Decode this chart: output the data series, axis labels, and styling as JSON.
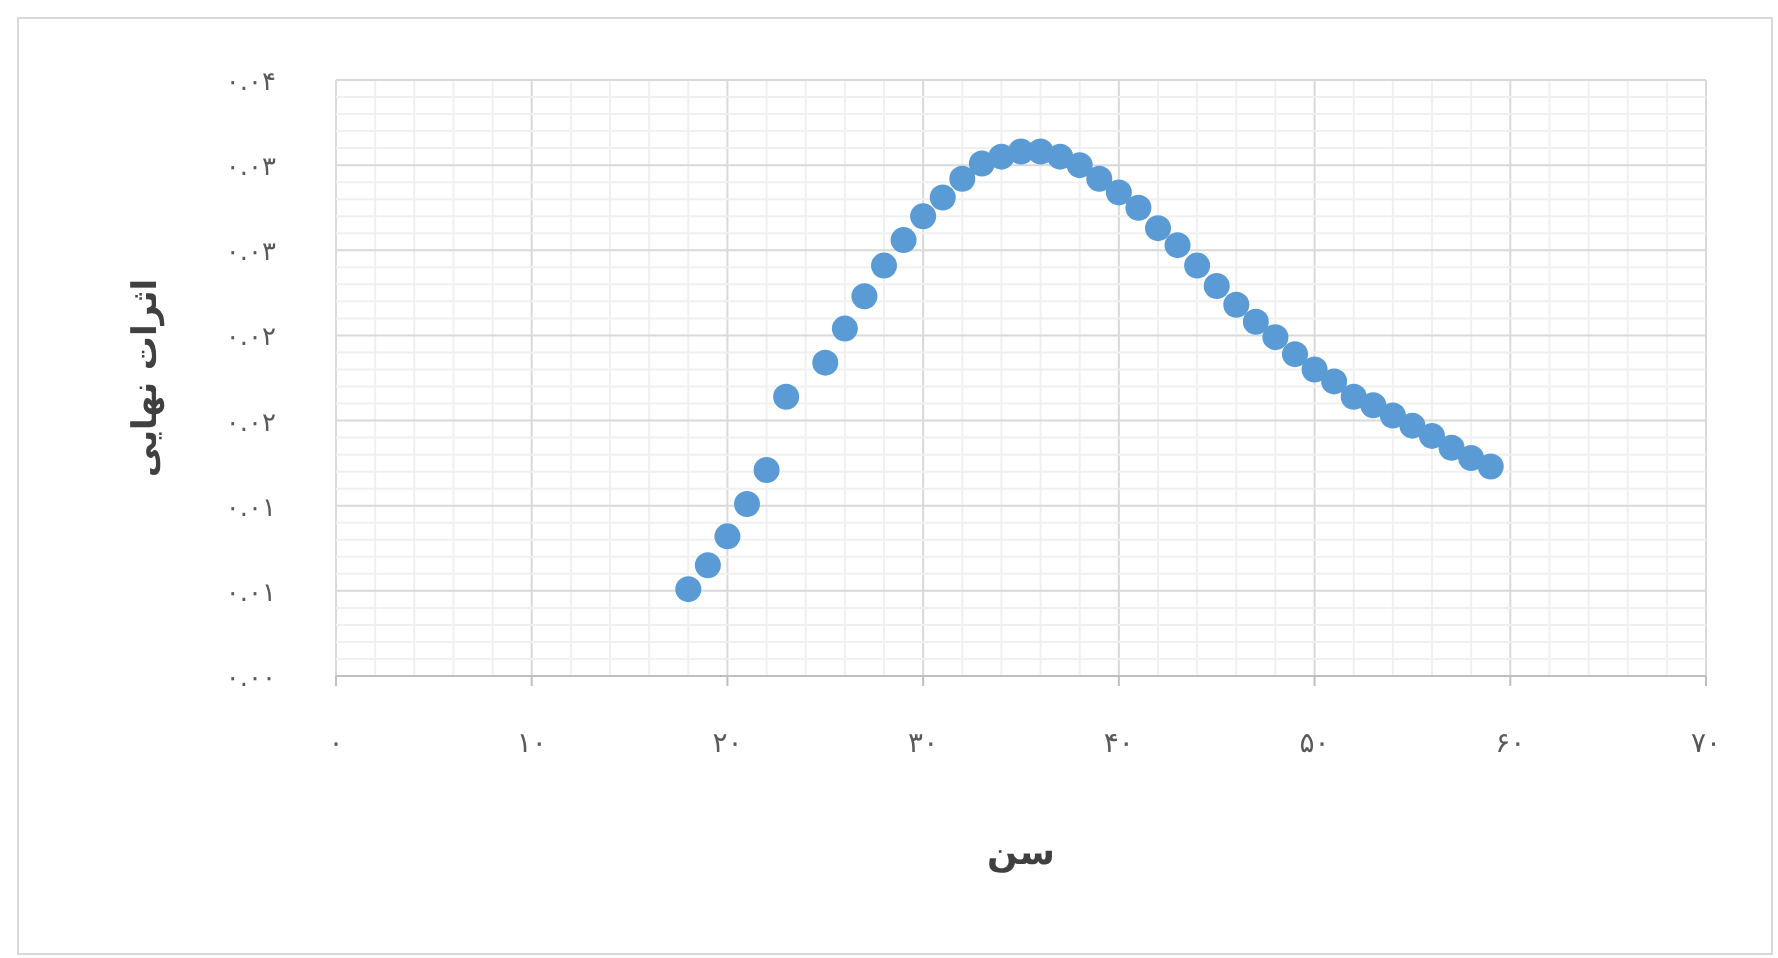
{
  "chart_data": {
    "type": "scatter",
    "xlabel": "سن",
    "ylabel": "اثرات نهایی",
    "x": [
      18,
      19,
      20,
      21,
      22,
      23,
      25,
      26,
      27,
      28,
      29,
      30,
      31,
      32,
      33,
      34,
      35,
      36,
      37,
      38,
      39,
      40,
      41,
      42,
      43,
      44,
      45,
      46,
      47,
      48,
      49,
      50,
      51,
      52,
      53,
      54,
      55,
      56,
      57,
      58,
      59
    ],
    "series": [
      {
        "color": "#5b9bd5",
        "values": [
          0.0051,
          0.0065,
          0.0082,
          0.0101,
          0.0121,
          0.0164,
          0.0184,
          0.0204,
          0.0223,
          0.0241,
          0.0256,
          0.027,
          0.0281,
          0.0292,
          0.0301,
          0.0305,
          0.0308,
          0.0308,
          0.0305,
          0.03,
          0.0292,
          0.0284,
          0.0275,
          0.0263,
          0.0253,
          0.0241,
          0.0229,
          0.0218,
          0.0208,
          0.0199,
          0.0189,
          0.018,
          0.0173,
          0.0164,
          0.0159,
          0.0153,
          0.0147,
          0.0141,
          0.0134,
          0.0128,
          0.0123
        ]
      }
    ],
    "xlim": [
      0,
      70
    ],
    "ylim": [
      0,
      0.035
    ],
    "xticks": [
      {
        "value": 0,
        "label": "۰"
      },
      {
        "value": 10,
        "label": "۱۰"
      },
      {
        "value": 20,
        "label": "۲۰"
      },
      {
        "value": 30,
        "label": "۳۰"
      },
      {
        "value": 40,
        "label": "۴۰"
      },
      {
        "value": 50,
        "label": "۵۰"
      },
      {
        "value": 60,
        "label": "۶۰"
      },
      {
        "value": 70,
        "label": "۷۰"
      }
    ],
    "yticks": [
      {
        "value": 0,
        "label": "۰.۰۰"
      },
      {
        "value": 0.005,
        "label": "۰.۰۱"
      },
      {
        "value": 0.01,
        "label": "۰.۰۱"
      },
      {
        "value": 0.015,
        "label": "۰.۰۲"
      },
      {
        "value": 0.02,
        "label": "۰.۰۲"
      },
      {
        "value": 0.025,
        "label": "۰.۰۳"
      },
      {
        "value": 0.03,
        "label": "۰.۰۳"
      },
      {
        "value": 0.035,
        "label": "۰.۰۴"
      }
    ],
    "grid": true,
    "marker": "circle"
  }
}
